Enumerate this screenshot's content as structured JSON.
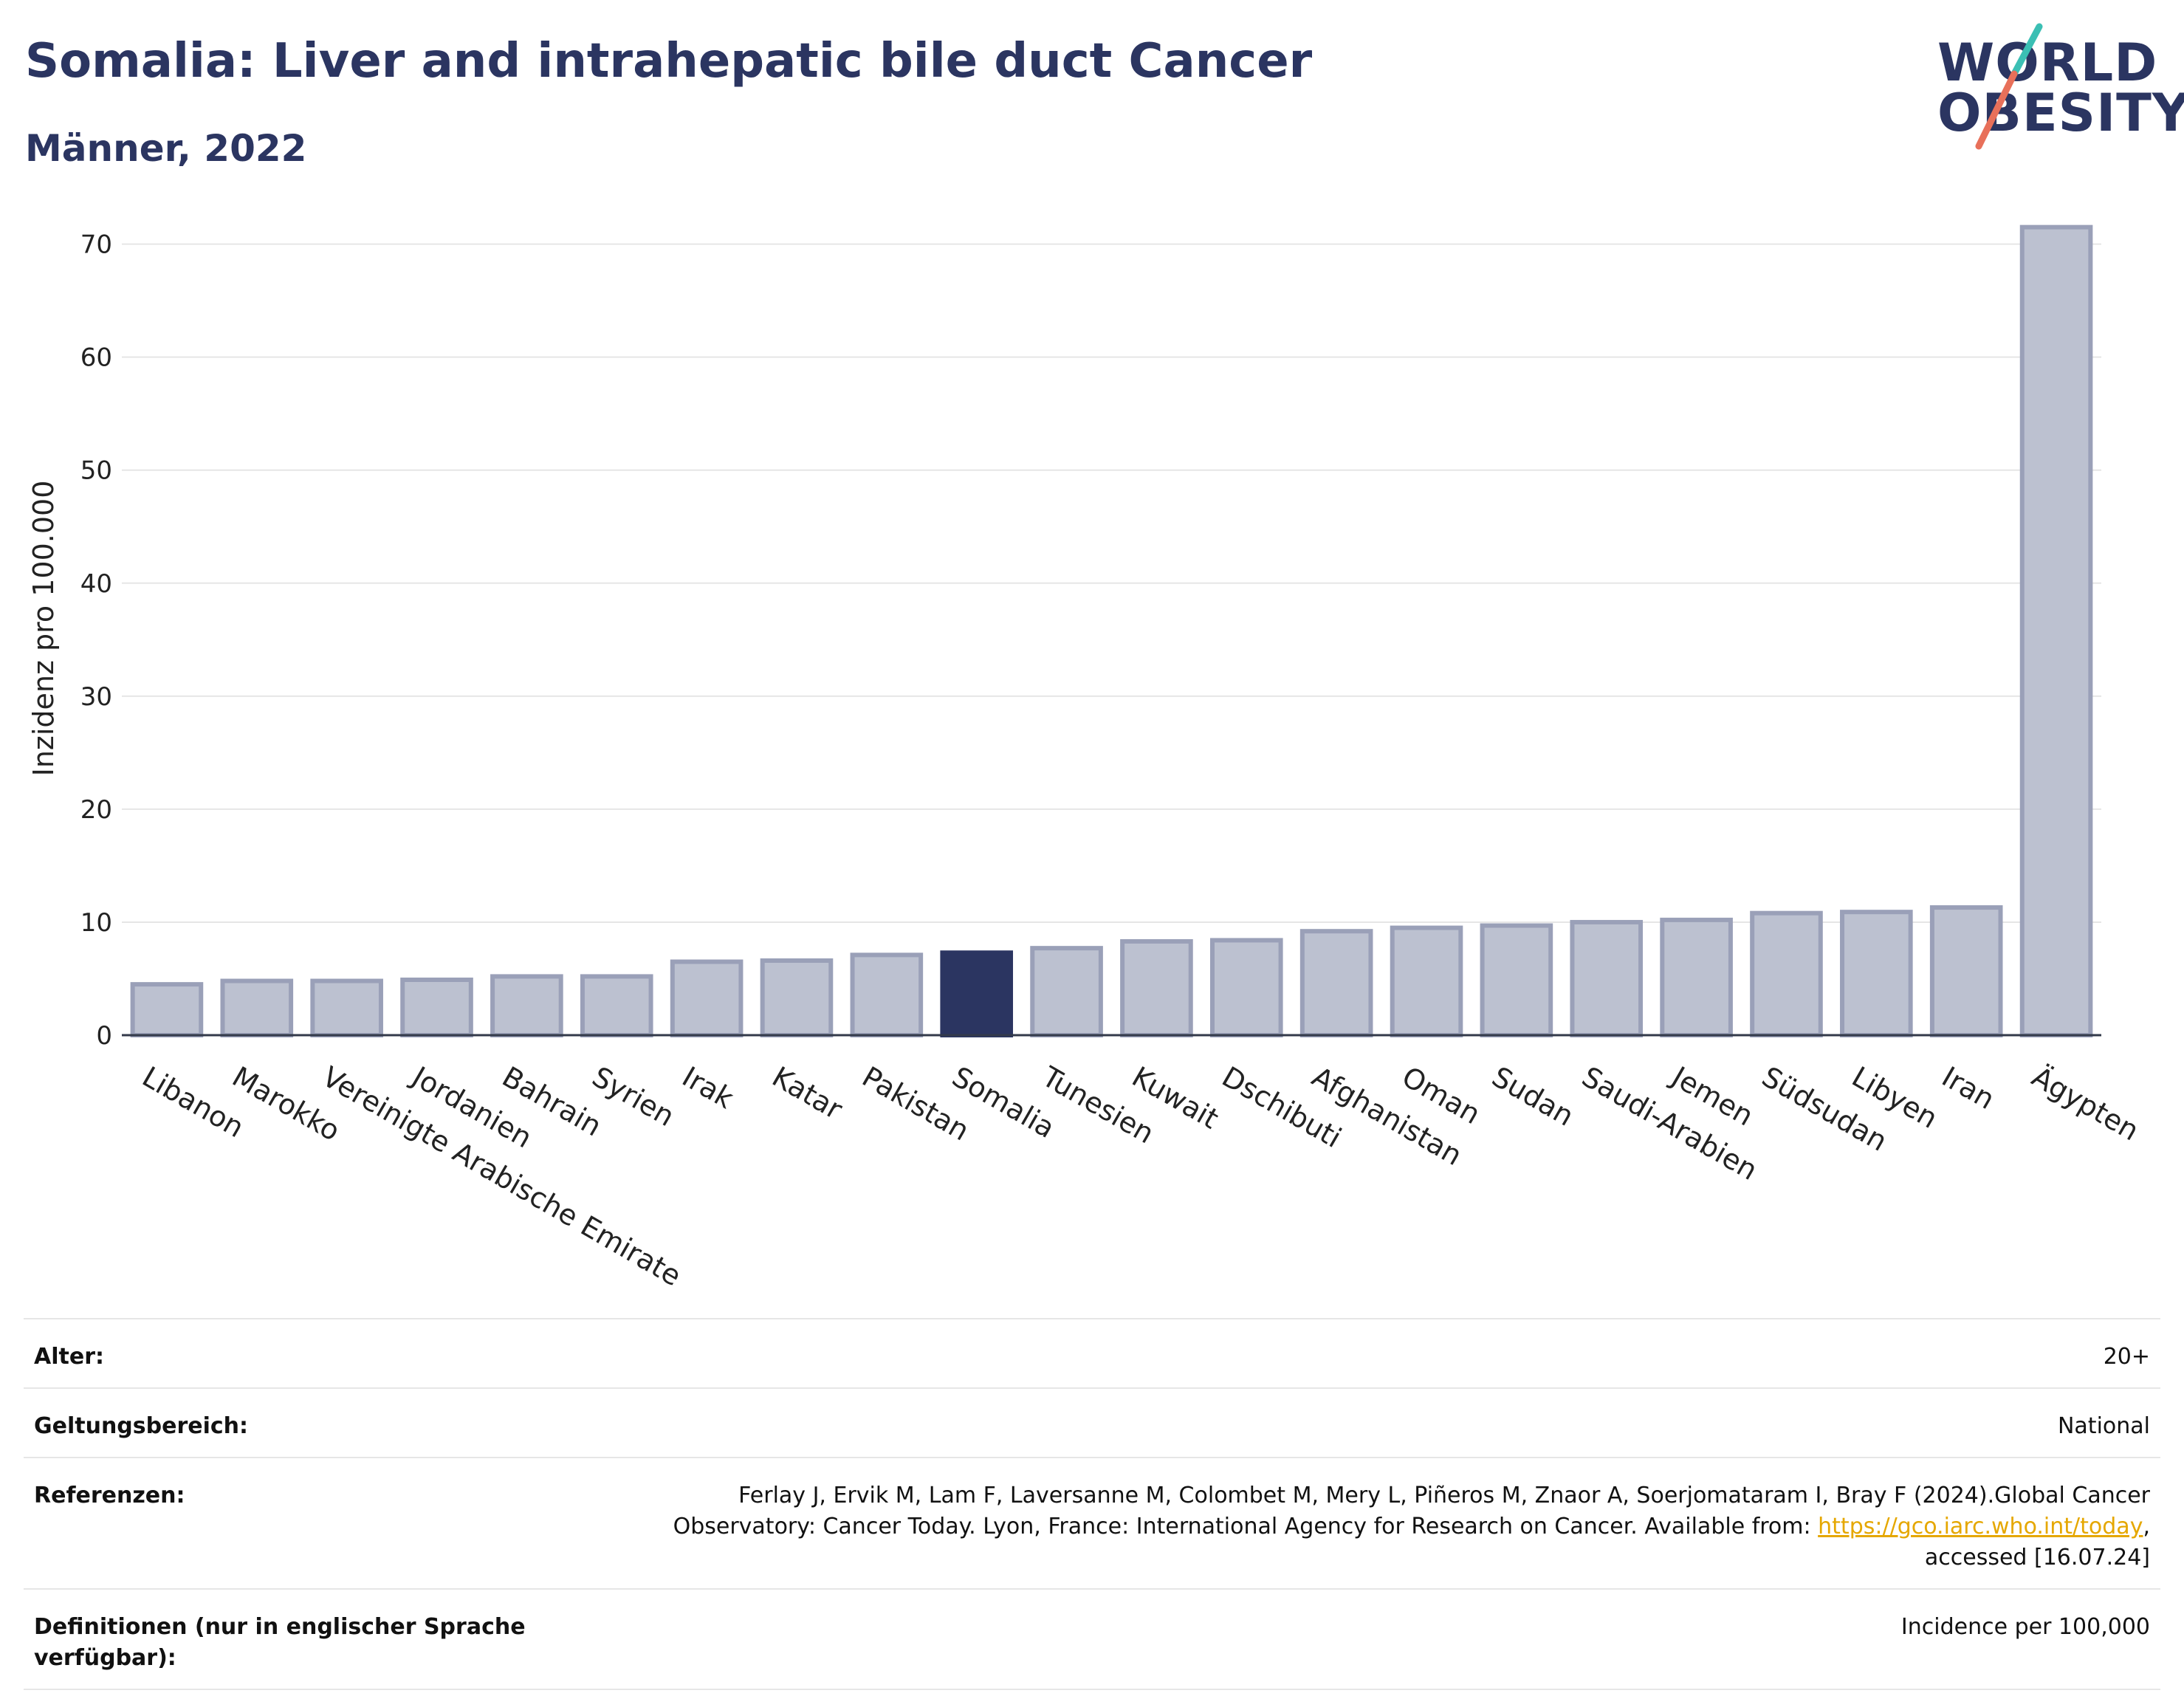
{
  "header": {
    "title": "Somalia: Liver and intrahepatic bile duct Cancer",
    "subtitle": "Männer, 2022"
  },
  "logo": {
    "line1": "WORLD",
    "line2": "OBESITY",
    "colors": {
      "text": "#2b3561",
      "slash_top": "#3bbfb4",
      "slash_bottom": "#e8705a"
    }
  },
  "chart_data": {
    "type": "bar",
    "title": "",
    "xlabel": "",
    "ylabel": "Inzidenz pro 100.000",
    "ylim": [
      0,
      72
    ],
    "yticks": [
      0,
      10,
      20,
      30,
      40,
      50,
      60,
      70
    ],
    "grid": true,
    "highlight": "Somalia",
    "colors": {
      "default": "#bcc1d0",
      "default_border": "#9aa0b8",
      "highlight": "#2b3561"
    },
    "categories": [
      "Libanon",
      "Marokko",
      "Vereinigte Arabische Emirate",
      "Jordanien",
      "Bahrain",
      "Syrien",
      "Irak",
      "Katar",
      "Pakistan",
      "Somalia",
      "Tunesien",
      "Kuwait",
      "Dschibuti",
      "Afghanistan",
      "Oman",
      "Sudan",
      "Saudi-Arabien",
      "Jemen",
      "Südsudan",
      "Libyen",
      "Iran",
      "Ägypten"
    ],
    "values": [
      4.5,
      4.8,
      4.8,
      4.9,
      5.2,
      5.2,
      6.5,
      6.6,
      7.1,
      7.3,
      7.7,
      8.3,
      8.4,
      9.2,
      9.5,
      9.7,
      10.0,
      10.2,
      10.8,
      10.9,
      11.3,
      71.5
    ]
  },
  "info": [
    {
      "key": "Alter:",
      "value": "20+"
    },
    {
      "key": "Geltungsbereich:",
      "value": "National"
    },
    {
      "key": "Referenzen:",
      "value_parts": {
        "before": "Ferlay J, Ervik M, Lam F, Laversanne M, Colombet M, Mery L, Piñeros M, Znaor A, Soerjomataram I, Bray F (2024).Global Cancer Observatory: Cancer Today. Lyon, France: International Agency for Research on Cancer. Available from: ",
        "link": "https://gco.iarc.who.int/today",
        "after": ", accessed [16.07.24]"
      }
    },
    {
      "key": "Definitionen (nur in englischer Sprache verfügbar):",
      "value": "Incidence per 100,000"
    }
  ]
}
